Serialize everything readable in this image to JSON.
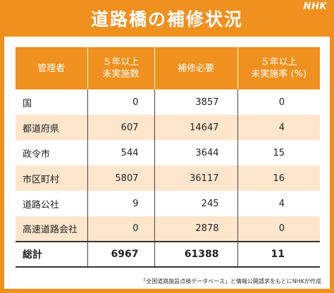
{
  "header": {
    "title": "道路橋の補修状況",
    "logo": "NHK"
  },
  "table": {
    "columns": [
      "管理者",
      "５年以上\n未実施数",
      "補修必要",
      "５年以上\n未実施率 (%)"
    ],
    "rows": [
      [
        "国",
        "0",
        "3857",
        "0"
      ],
      [
        "都道府県",
        "607",
        "14647",
        "4"
      ],
      [
        "政令市",
        "544",
        "3644",
        "15"
      ],
      [
        "市区町村",
        "5807",
        "36117",
        "16"
      ],
      [
        "道路公社",
        "9",
        "245",
        "4"
      ],
      [
        "高速道路会社",
        "0",
        "2878",
        "0"
      ]
    ],
    "total": [
      "総計",
      "6967",
      "61388",
      "11"
    ]
  },
  "source": "「全国道路施設点検データベース」と情報公開請求をもとにNHKが作成",
  "colors": {
    "accent": "#f0901e",
    "row_alt": "#fde6cc"
  }
}
